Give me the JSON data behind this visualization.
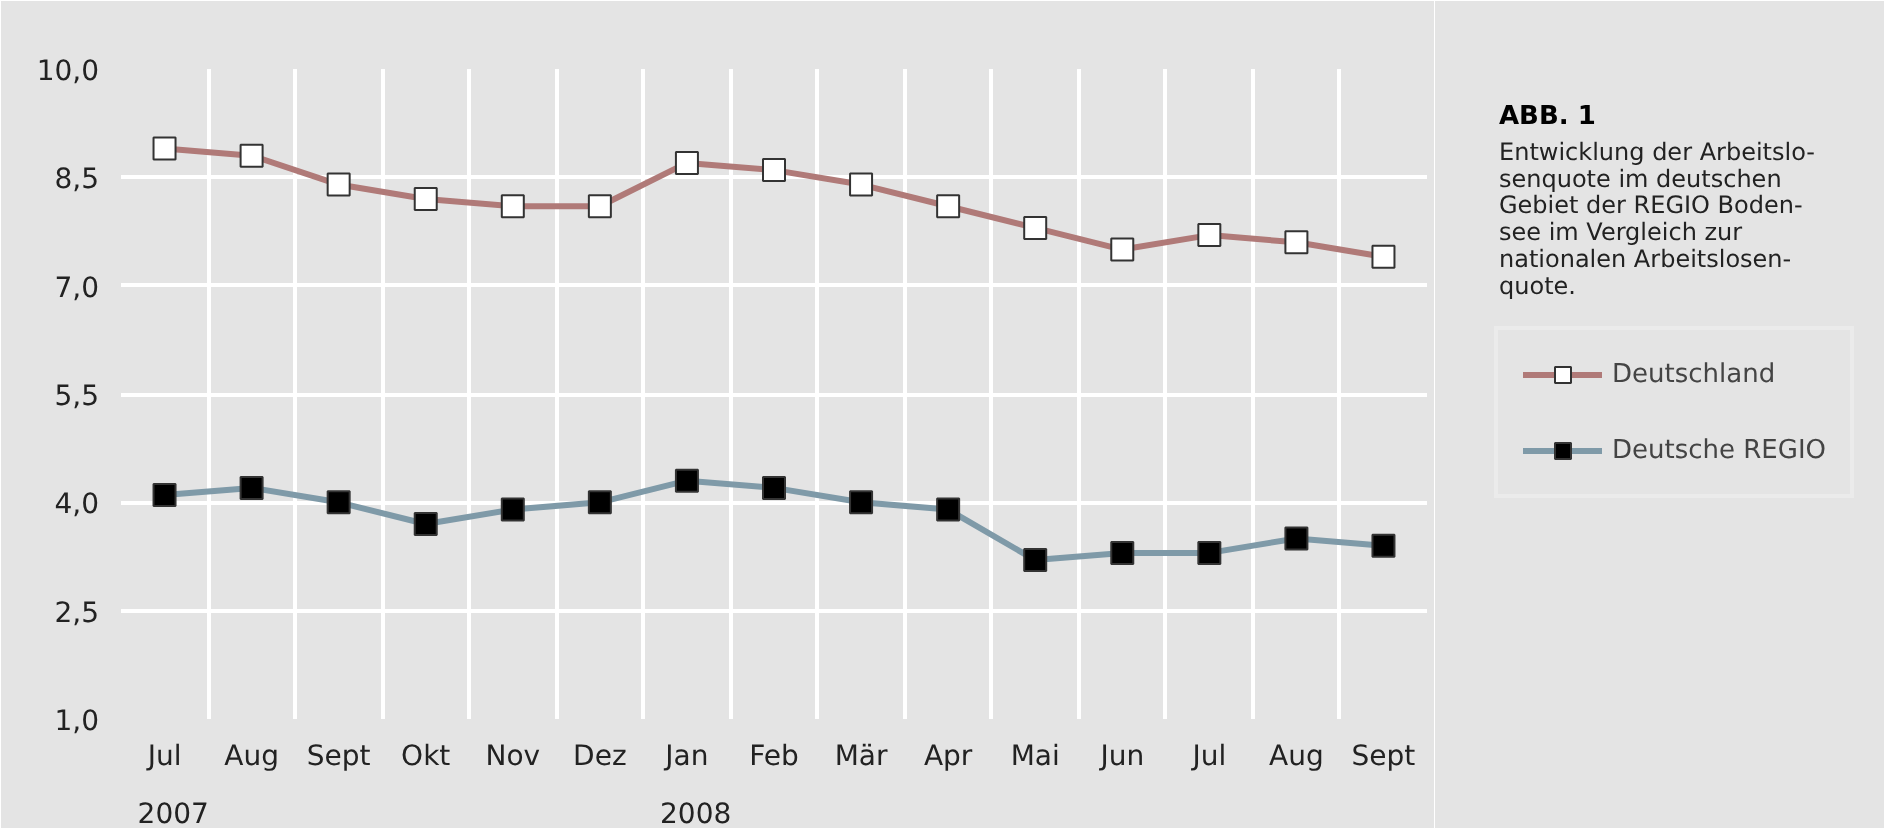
{
  "chart_data": {
    "type": "line",
    "title": "ABB. 1",
    "subtitle": "Entwicklung der Arbeitslo-\nsenquote im deutschen\nGebiet der REGIO Boden-\nsee im Vergleich zur\nnationalen Arbeitslosen-\nquote.",
    "categories": [
      "Jul",
      "Aug",
      "Sept",
      "Okt",
      "Nov",
      "Dez",
      "Jan",
      "Feb",
      "Mär",
      "Apr",
      "Mai",
      "Jun",
      "Jul",
      "Aug",
      "Sept"
    ],
    "series": [
      {
        "name": "Deutschland",
        "color": "#b07a78",
        "values": [
          8.9,
          8.8,
          8.4,
          8.2,
          8.1,
          8.1,
          8.7,
          8.6,
          8.4,
          8.1,
          7.8,
          7.5,
          7.7,
          7.6,
          7.4
        ]
      },
      {
        "name": "Deutsche REGIO",
        "color": "#7f9aa8",
        "values": [
          4.1,
          4.2,
          4.0,
          3.7,
          3.9,
          4.0,
          4.3,
          4.2,
          4.0,
          3.9,
          3.2,
          3.3,
          3.3,
          3.5,
          3.4
        ]
      }
    ],
    "annotations": [
      "2007",
      "2008"
    ],
    "ylim": [
      1,
      10
    ],
    "yticks": [
      {
        "value": 1,
        "label": "1,0"
      },
      {
        "value": 2.5,
        "label": "2,5"
      },
      {
        "value": 4,
        "label": "4,0"
      },
      {
        "value": 5.5,
        "label": "5,5"
      },
      {
        "value": 7,
        "label": "7,0"
      },
      {
        "value": 8.5,
        "label": "8,5"
      },
      {
        "value": 10,
        "label": "10,0"
      }
    ],
    "grid": true,
    "legend": "right",
    "marker": "square",
    "line_style": "solid"
  }
}
